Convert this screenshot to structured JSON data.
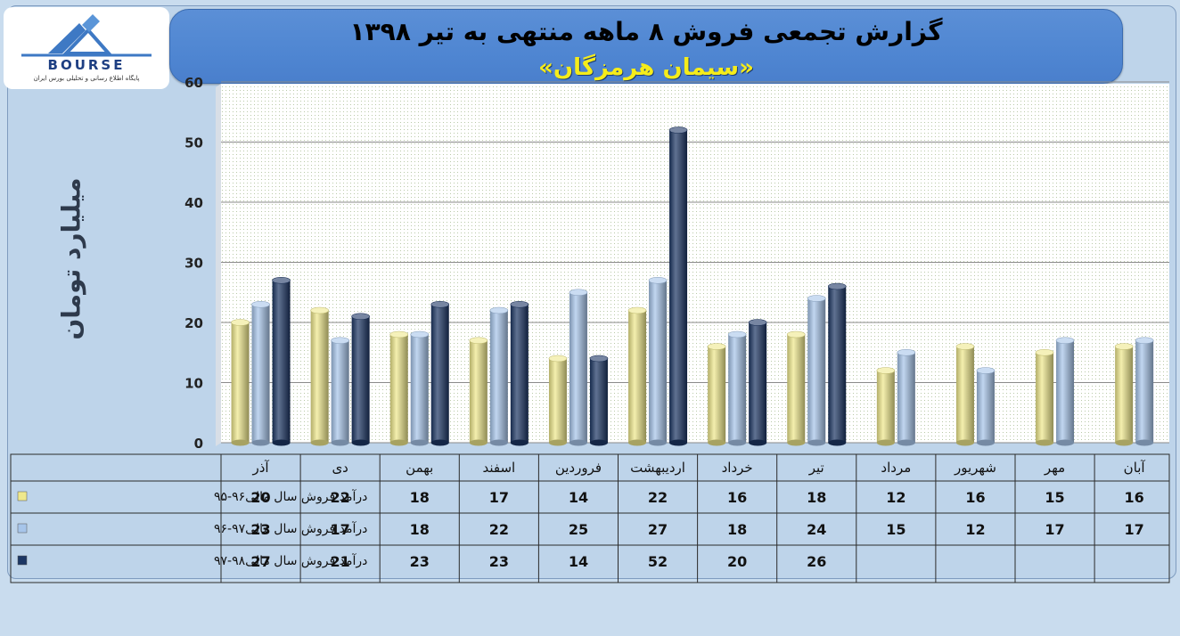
{
  "header": {
    "title": "گزارش تجمعی فروش ۸ ماهه منتهی به تیر ۱۳۹۸",
    "subtitle": "«سیمان هرمزگان»"
  },
  "logo": {
    "name": "BOURSE",
    "tagline": "پایگاه اطلاع رسانی و تحلیلی بورس ایران"
  },
  "colors": {
    "series1": "#efe88c",
    "series2": "#a7c5ea",
    "series3": "#1c3664"
  },
  "chart_data": {
    "type": "bar",
    "ylabel": "میلیارد تومان",
    "ylim": [
      0,
      60
    ],
    "yticks": [
      0,
      10,
      20,
      30,
      40,
      50,
      60
    ],
    "grid": true,
    "categories": [
      "آذر",
      "دی",
      "بهمن",
      "اسفند",
      "فروردین",
      "اردیبهشت",
      "خرداد",
      "تیر",
      "مرداد",
      "شهریور",
      "مهر",
      "آبان"
    ],
    "series": [
      {
        "name": "درآمد فروش سال مالی۹۶-۹۵",
        "values": [
          20,
          22,
          18,
          17,
          14,
          22,
          16,
          18,
          12,
          16,
          15,
          16
        ]
      },
      {
        "name": "درآمد فروش سال مالی۹۷-۹۶",
        "values": [
          23,
          17,
          18,
          22,
          25,
          27,
          18,
          24,
          15,
          12,
          17,
          17
        ]
      },
      {
        "name": "درآمد فروش سال مالی۹۸-۹۷",
        "values": [
          27,
          21,
          23,
          23,
          14,
          52,
          20,
          26,
          null,
          null,
          null,
          null
        ]
      }
    ]
  }
}
